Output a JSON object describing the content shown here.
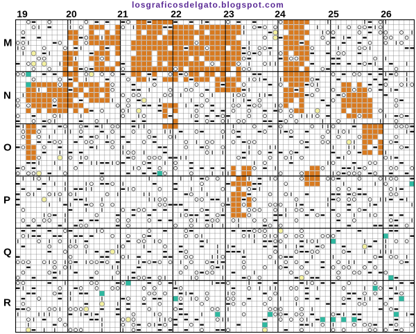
{
  "watermark": "losgraficosdelgato.blogspot.com",
  "column_labels": [
    "19",
    "20",
    "21",
    "22",
    "23",
    "24",
    "25",
    "26"
  ],
  "row_labels": [
    "M",
    "N",
    "O",
    "P",
    "Q",
    "R"
  ],
  "colors": {
    "orange_fill": "#d87a1f",
    "teal_fill": "#2fb8a0",
    "yellow_circle": "#f5f2a0",
    "grid_line": "#7a7a7a",
    "grid_bold": "#000000"
  },
  "symbol_legend": [
    "orange-square-symbol",
    "circle-symbol",
    "dash-symbol",
    "bar-symbol",
    "teal-one-symbol",
    "yellow-circle-symbol"
  ]
}
